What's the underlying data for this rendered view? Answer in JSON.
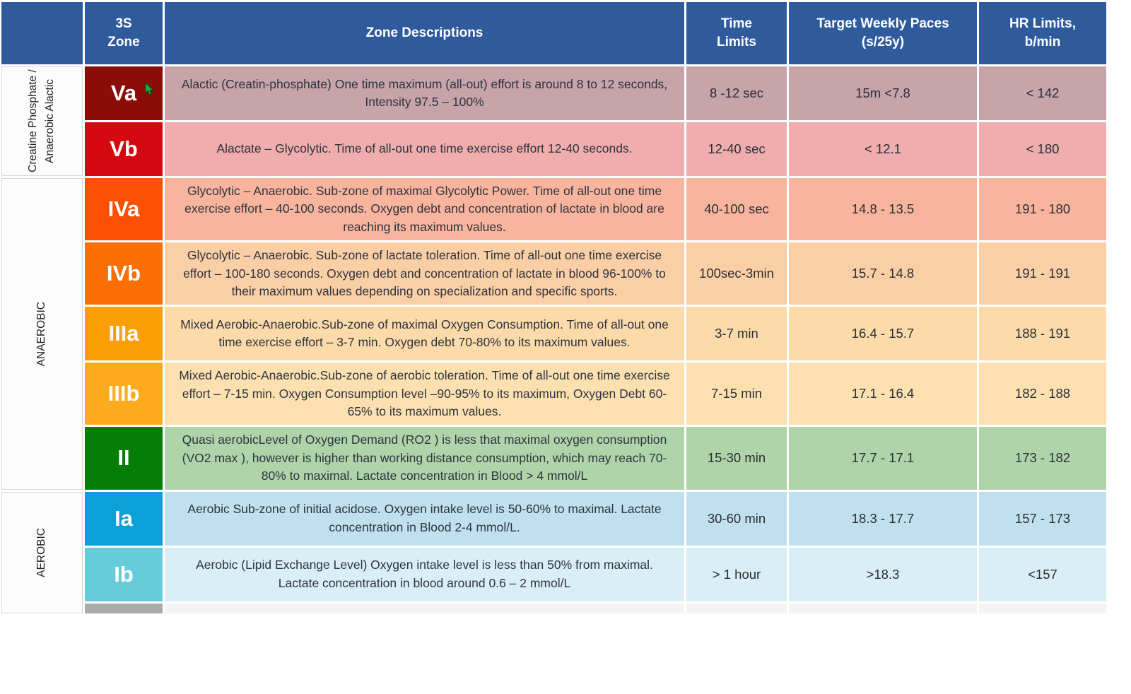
{
  "header": {
    "category": "",
    "zone": "3S\nZone",
    "descriptions": "Zone Descriptions",
    "time_limits": "Time\nLimits",
    "paces": "Target Weekly Paces\n(s/25y)",
    "hr_limits": "HR Limits,\nb/min",
    "header_bg": "#2f5b9d",
    "header_text": "#ffffff"
  },
  "side_categories": [
    {
      "label": "Creatine Phosphate / Anaerobic Alactic"
    },
    {
      "label": "ANAEROBIC"
    },
    {
      "label": "AEROBIC"
    }
  ],
  "rows": [
    {
      "zone": "Va",
      "zone_color": "#8a0d08",
      "row_color": "#c7a3aa",
      "description": "Alactic (Creatin-phosphate) One time maximum (all-out) effort is around 8 to 12 seconds, Intensity 97.5 – 100%",
      "time_limit": "8 -12 sec",
      "pace": "15m <7.8",
      "hr": "< 142"
    },
    {
      "zone": "Vb",
      "zone_color": "#d40912",
      "row_color": "#efadad",
      "description": "Alactate – Glycolytic. Time of all-out one time exercise effort 12-40 seconds.",
      "time_limit": "12-40 sec",
      "pace": "< 12.1",
      "hr": "< 180"
    },
    {
      "zone": "IVa",
      "zone_color": "#fb4f04",
      "row_color": "#f8b49d",
      "description": "Glycolytic – Anaerobic. Sub-zone of maximal Glycolytic Power. Time of all-out one time exercise effort – 40-100 seconds. Oxygen debt and concentration of lactate in blood are reaching its maximum values.",
      "time_limit": "40-100 sec",
      "pace": "14.8 - 13.5",
      "hr": "191 - 180"
    },
    {
      "zone": "IVb",
      "zone_color": "#fb7005",
      "row_color": "#fbcfa5",
      "description": "Glycolytic – Anaerobic. Sub-zone of lactate toleration. Time of all-out one time exercise effort – 100-180 seconds. Oxygen debt and concentration of lactate in blood 96-100% to their maximum values depending on specialization and specific sports.",
      "time_limit": "100sec-3min",
      "pace": "15.7 - 14.8",
      "hr": "191 - 191"
    },
    {
      "zone": "IIIa",
      "zone_color": "#fb9e07",
      "row_color": "#fcdaa9",
      "description": "Mixed Aerobic-Anaerobic.Sub-zone of maximal Oxygen Consumption. Time of all-out one time exercise effort – 3-7 min. Oxygen debt 70-80% to its maximum values.",
      "time_limit": "3-7 min",
      "pace": "16.4 - 15.7",
      "hr": "188 - 191"
    },
    {
      "zone": "IIIb",
      "zone_color": "#fcab1d",
      "row_color": "#fde0b0",
      "description": "Mixed Aerobic-Anaerobic.Sub-zone of aerobic toleration. Time of all-out one time exercise effort – 7-15 min. Oxygen Consumption level –90-95% to its maximum, Oxygen Debt 60-65% to its maximum values.",
      "time_limit": "7-15 min",
      "pace": "17.1 - 16.4",
      "hr": "182 - 188"
    },
    {
      "zone": "II",
      "zone_color": "#057d06",
      "row_color": "#afd4a9",
      "description": "Quasi aerobicLevel of Oxygen Demand (RO2 ) is less that maximal oxygen consumption (VO2 max ), however is higher than working distance consumption, which may reach 70-80% to maximal. Lactate concentration in Blood > 4 mmol/L",
      "time_limit": "15-30 min",
      "pace": "17.7 - 17.1",
      "hr": "173 - 182"
    },
    {
      "zone": "Ia",
      "zone_color": "#0ba0d6",
      "row_color": "#c0e0f0",
      "description": "Aerobic Sub-zone of initial acidose. Oxygen intake level is 50-60% to maximal. Lactate concentration in Blood 2-4 mmol/L.",
      "time_limit": "30-60 min",
      "pace": "18.3 - 17.7",
      "hr": "157 - 173"
    },
    {
      "zone": "Ib",
      "zone_color": "#66ccd9",
      "row_color": "#daeff5",
      "description": "Aerobic (Lipid Exchange Level) Oxygen intake level is less than 50% from maximal. Lactate concentration in blood around 0.6 – 2 mmol/L",
      "time_limit": "> 1 hour",
      "pace": ">18.3",
      "hr": "<157"
    }
  ],
  "bottom_partial_row": {
    "zone_color": "#ababab",
    "row_color": "#f4f4f4"
  },
  "cursor": {
    "color": "#1fa74a",
    "outline": "#0c3b1c"
  }
}
